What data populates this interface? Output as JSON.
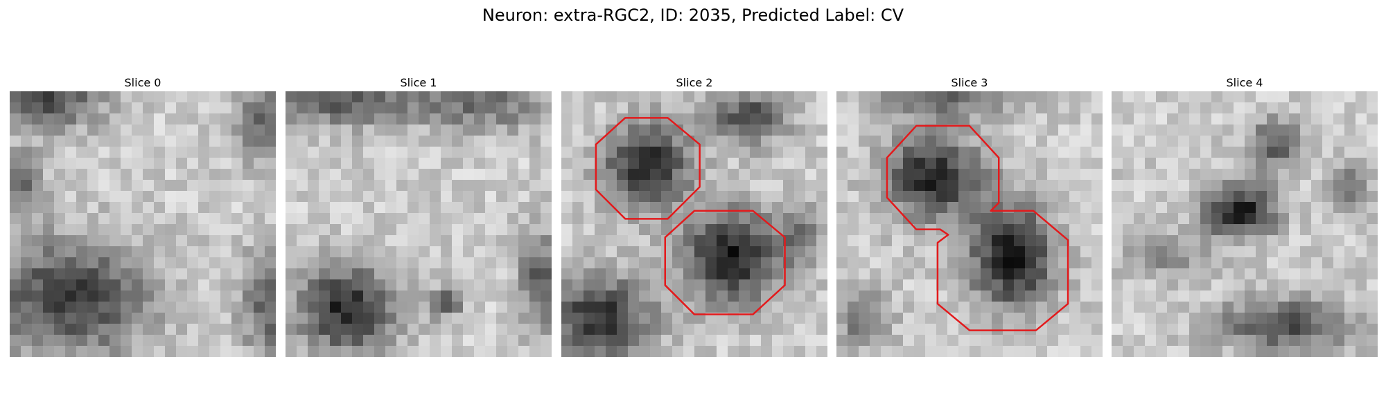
{
  "figure": {
    "title": "Neuron: extra-RGC2, ID: 2035, Predicted Label: CV"
  },
  "panels": [
    {
      "title": "Slice 0",
      "seed": 11,
      "blobs": [
        [
          0.22,
          0.78,
          0.3,
          0.22,
          0.55
        ],
        [
          0.97,
          0.8,
          0.1,
          0.2,
          0.45
        ],
        [
          0.15,
          0.02,
          0.2,
          0.12,
          0.5
        ],
        [
          0.95,
          0.12,
          0.1,
          0.15,
          0.4
        ],
        [
          0.05,
          0.35,
          0.08,
          0.12,
          0.35
        ]
      ],
      "outline_color": "#e31a1c",
      "outlines": []
    },
    {
      "title": "Slice 1",
      "seed": 23,
      "blobs": [
        [
          0.23,
          0.82,
          0.18,
          0.16,
          0.65
        ],
        [
          0.6,
          0.8,
          0.06,
          0.05,
          0.45
        ],
        [
          0.96,
          0.72,
          0.08,
          0.18,
          0.45
        ],
        [
          0.2,
          0.03,
          0.3,
          0.1,
          0.45
        ],
        [
          0.75,
          0.05,
          0.25,
          0.1,
          0.35
        ]
      ],
      "outline_color": "#e31a1c",
      "outlines": []
    },
    {
      "title": "Slice 2",
      "seed": 37,
      "blobs": [
        [
          0.32,
          0.28,
          0.16,
          0.16,
          0.65
        ],
        [
          0.64,
          0.62,
          0.18,
          0.17,
          0.7
        ],
        [
          0.14,
          0.85,
          0.2,
          0.16,
          0.6
        ],
        [
          0.7,
          0.1,
          0.15,
          0.1,
          0.5
        ],
        [
          0.9,
          0.55,
          0.08,
          0.12,
          0.3
        ]
      ],
      "outline_color": "#e31a1c",
      "outlines": [
        [
          [
            0.32,
            0.1
          ],
          [
            0.4,
            0.1
          ],
          [
            0.52,
            0.2
          ],
          [
            0.52,
            0.36
          ],
          [
            0.4,
            0.48
          ],
          [
            0.24,
            0.48
          ],
          [
            0.13,
            0.37
          ],
          [
            0.13,
            0.2
          ],
          [
            0.24,
            0.1
          ]
        ],
        [
          [
            0.5,
            0.45
          ],
          [
            0.72,
            0.45
          ],
          [
            0.84,
            0.55
          ],
          [
            0.84,
            0.73
          ],
          [
            0.72,
            0.84
          ],
          [
            0.5,
            0.84
          ],
          [
            0.39,
            0.73
          ],
          [
            0.39,
            0.55
          ]
        ]
      ]
    },
    {
      "title": "Slice 3",
      "seed": 49,
      "blobs": [
        [
          0.36,
          0.32,
          0.18,
          0.16,
          0.65
        ],
        [
          0.66,
          0.62,
          0.16,
          0.2,
          0.7
        ],
        [
          0.1,
          0.85,
          0.1,
          0.12,
          0.35
        ],
        [
          0.4,
          0.02,
          0.25,
          0.08,
          0.35
        ]
      ],
      "outline_color": "#e31a1c",
      "outlines": [
        [
          [
            0.3,
            0.13
          ],
          [
            0.5,
            0.13
          ],
          [
            0.61,
            0.25
          ],
          [
            0.61,
            0.42
          ],
          [
            0.58,
            0.45
          ],
          [
            0.74,
            0.45
          ],
          [
            0.87,
            0.56
          ],
          [
            0.87,
            0.8
          ],
          [
            0.75,
            0.9
          ],
          [
            0.5,
            0.9
          ],
          [
            0.38,
            0.8
          ],
          [
            0.38,
            0.57
          ],
          [
            0.42,
            0.54
          ],
          [
            0.39,
            0.52
          ],
          [
            0.3,
            0.52
          ],
          [
            0.19,
            0.4
          ],
          [
            0.19,
            0.25
          ]
        ]
      ]
    },
    {
      "title": "Slice 4",
      "seed": 61,
      "blobs": [
        [
          0.48,
          0.45,
          0.14,
          0.1,
          0.7
        ],
        [
          0.62,
          0.2,
          0.1,
          0.1,
          0.45
        ],
        [
          0.65,
          0.88,
          0.25,
          0.1,
          0.5
        ],
        [
          0.2,
          0.62,
          0.15,
          0.08,
          0.3
        ],
        [
          0.9,
          0.35,
          0.08,
          0.1,
          0.3
        ]
      ],
      "outline_color": "#e31a1c",
      "outlines": []
    }
  ]
}
